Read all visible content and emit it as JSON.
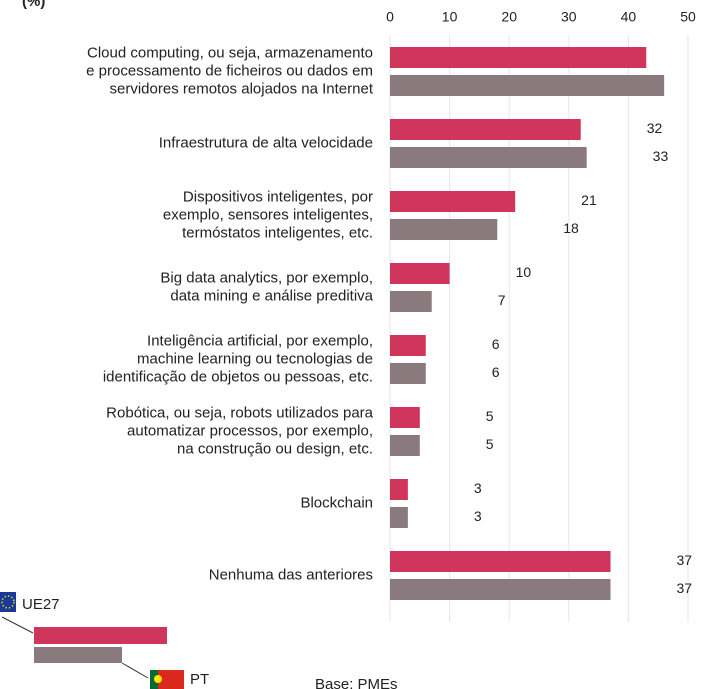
{
  "chart_data": {
    "type": "hbar",
    "title": "(%)",
    "footnote": "Base: PMEs",
    "categories": [
      "Cloud computing, ou seja, armazenamento\ne processamento de ficheiros ou dados em\nservidores remotos alojados na Internet",
      "Infraestrutura de alta velocidade",
      "Dispositivos inteligentes, por\nexemplo, sensores inteligentes,\ntermóstatos inteligentes, etc.",
      "Big data analytics, por exemplo,\ndata mining e análise preditiva",
      "Inteligência artificial, por exemplo,\nmachine learning ou tecnologias de\nidentificação de objetos ou pessoas, etc.",
      "Robótica, ou seja, robots utilizados para\nautomatizar processos, por exemplo,\nna construção ou design, etc.",
      "Blockchain",
      "Nenhuma das anteriores"
    ],
    "series": [
      {
        "name": "UE27",
        "color": "#d0365b",
        "values": [
          43,
          32,
          21,
          10,
          6,
          5,
          3,
          37
        ]
      },
      {
        "name": "PT",
        "color": "#8a7a7e",
        "values": [
          46,
          33,
          18,
          7,
          6,
          5,
          3,
          37
        ]
      }
    ],
    "xlim": [
      0,
      50
    ],
    "xticks": [
      0,
      10,
      20,
      30,
      40,
      50
    ],
    "grid": true
  }
}
